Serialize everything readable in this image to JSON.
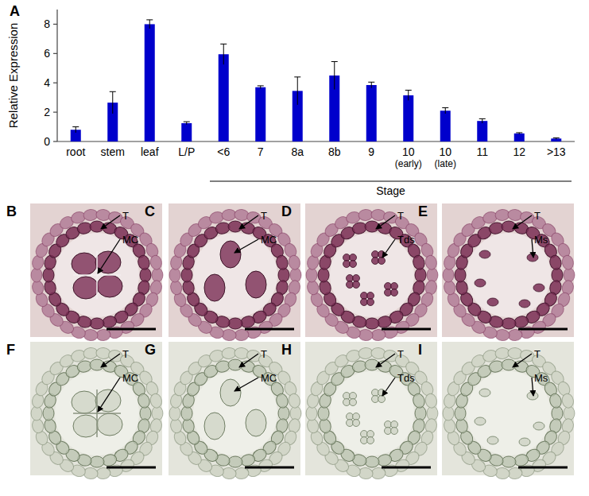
{
  "chart_letter": "A",
  "chart_data": {
    "type": "bar",
    "categories": [
      "root",
      "stem",
      "leaf",
      "L/P",
      "<6",
      "7",
      "8a",
      "8b",
      "9",
      "10 (early)",
      "10 (late)",
      "11",
      "12",
      ">13"
    ],
    "values": [
      0.8,
      2.65,
      8.0,
      1.25,
      5.95,
      3.7,
      3.45,
      4.5,
      3.85,
      3.15,
      2.1,
      1.4,
      0.55,
      0.2
    ],
    "errors": [
      0.2,
      0.75,
      0.3,
      0.1,
      0.7,
      0.1,
      0.95,
      0.95,
      0.2,
      0.35,
      0.2,
      0.15,
      0.05,
      0.05
    ],
    "color": "#0000cc",
    "ylim": [
      0,
      9
    ],
    "yticks": [
      0,
      2,
      4,
      6,
      8
    ],
    "y_label": "Relative Expression",
    "annotations": [
      {
        "text": "Stage",
        "span": [
          "<6",
          ">13"
        ]
      }
    ],
    "grid": false
  },
  "panels": [
    {
      "letter": "B",
      "color": "#7a2e55",
      "labels": [
        "T",
        "MC"
      ]
    },
    {
      "letter": "C",
      "color": "#7a2e55",
      "labels": [
        "T",
        "MC"
      ]
    },
    {
      "letter": "D",
      "color": "#7a2e55",
      "labels": [
        "T",
        "Tds"
      ]
    },
    {
      "letter": "E",
      "color": "#7a2e55",
      "labels": [
        "T",
        "Ms"
      ]
    },
    {
      "letter": "F",
      "color": "#6f7d63",
      "labels": [
        "T",
        "MC"
      ]
    },
    {
      "letter": "G",
      "color": "#6f7d63",
      "labels": [
        "T",
        "MC"
      ]
    },
    {
      "letter": "H",
      "color": "#6f7d63",
      "labels": [
        "T",
        "Tds"
      ]
    },
    {
      "letter": "I",
      "color": "#6f7d63",
      "labels": [
        "T",
        "Ms"
      ]
    }
  ]
}
